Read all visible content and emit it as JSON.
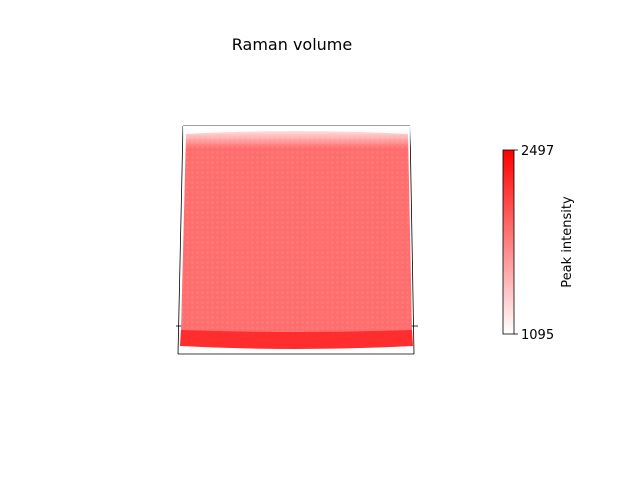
{
  "chart_data": {
    "type": "scatter",
    "title": "Raman volume",
    "plot_kind": "3d-scatter-volume",
    "axes_visible": false,
    "grid": false,
    "colormap": {
      "name": "white-to-red",
      "low_color": "#ffffff",
      "high_color": "#ff0000"
    },
    "colorbar": {
      "label": "Peak intensity",
      "min": 1095,
      "max": 2497,
      "tick_labels": [
        "2497",
        "1095"
      ],
      "location": "right"
    },
    "volume_summary": {
      "face_intensity": 1900,
      "bottom_edge_intensity": 2250,
      "top_edge_intensity": 1400
    }
  }
}
